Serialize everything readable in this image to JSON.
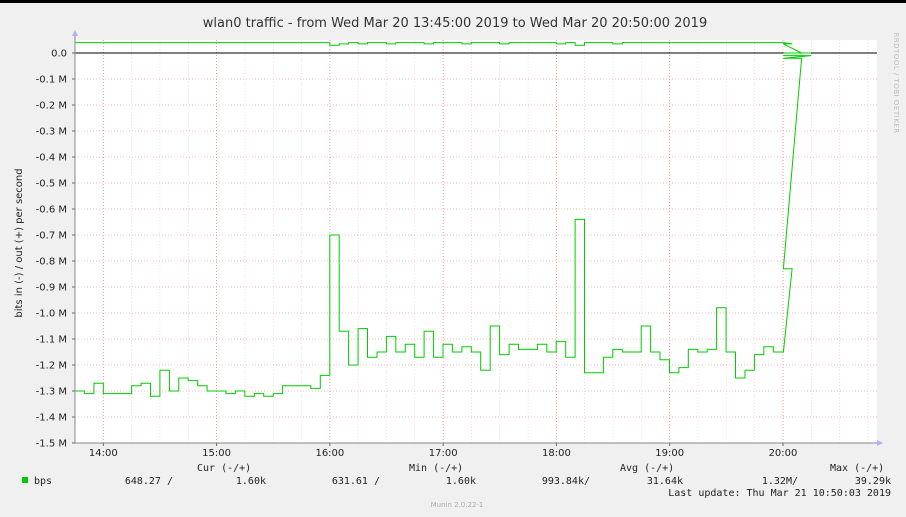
{
  "colors": {
    "background": "#f0f0f0",
    "plot_bg": "#ffffff",
    "series": "#00cc00",
    "grid": "#f08080",
    "zero_line": "#000000",
    "arrow": "#b0b0ff"
  },
  "side_label": "RRDTOOL / TOBI OETIKER",
  "legend": {
    "headers": [
      "Cur (-/+)",
      "Min (-/+)",
      "Avg (-/+)",
      "Max (-/+)"
    ],
    "series_name": "bps",
    "cur": [
      "648.27 /",
      "1.60k"
    ],
    "min": [
      "631.61 /",
      "1.60k"
    ],
    "avg": [
      "993.84k/",
      "31.64k"
    ],
    "max": [
      "1.32M/",
      "39.29k"
    ],
    "last_update": "Last update:  Thu Mar 21 10:50:03 2019"
  },
  "footer": "Munin 2.0.22-1",
  "chart_data": {
    "type": "line",
    "title": "wlan0 traffic - from Wed Mar 20 13:45:00 2019 to Wed Mar 20 20:50:00 2019",
    "xlabel": "",
    "ylabel": "bits in (-) / out (+) per second",
    "x_unit": "hours since 13:45",
    "xlim": [
      0,
      7.08
    ],
    "ylim": [
      -1.5,
      0.05
    ],
    "x_ticks": [
      {
        "x": 0.25,
        "label": "14:00"
      },
      {
        "x": 1.25,
        "label": "15:00"
      },
      {
        "x": 2.25,
        "label": "16:00"
      },
      {
        "x": 3.25,
        "label": "17:00"
      },
      {
        "x": 4.25,
        "label": "18:00"
      },
      {
        "x": 5.25,
        "label": "19:00"
      },
      {
        "x": 6.25,
        "label": "20:00"
      }
    ],
    "y_ticks": [
      {
        "y": 0.0,
        "label": "0.0"
      },
      {
        "y": -0.1,
        "label": "-0.1 M"
      },
      {
        "y": -0.2,
        "label": "-0.2 M"
      },
      {
        "y": -0.3,
        "label": "-0.3 M"
      },
      {
        "y": -0.4,
        "label": "-0.4 M"
      },
      {
        "y": -0.5,
        "label": "-0.5 M"
      },
      {
        "y": -0.6,
        "label": "-0.6 M"
      },
      {
        "y": -0.7,
        "label": "-0.7 M"
      },
      {
        "y": -0.8,
        "label": "-0.8 M"
      },
      {
        "y": -0.9,
        "label": "-0.9 M"
      },
      {
        "y": -1.0,
        "label": "-1.0 M"
      },
      {
        "y": -1.1,
        "label": "-1.1 M"
      },
      {
        "y": -1.2,
        "label": "-1.2 M"
      },
      {
        "y": -1.3,
        "label": "-1.3 M"
      },
      {
        "y": -1.4,
        "label": "-1.4 M"
      },
      {
        "y": -1.5,
        "label": "-1.5 M"
      }
    ],
    "grid": true,
    "legend_position": "bottom-left",
    "series": [
      {
        "name": "bps (in, negative)",
        "color": "#00cc00",
        "step_width": 0.0833,
        "values": [
          -1.3,
          -1.31,
          -1.27,
          -1.31,
          -1.31,
          -1.31,
          -1.28,
          -1.27,
          -1.32,
          -1.22,
          -1.3,
          -1.25,
          -1.26,
          -1.28,
          -1.3,
          -1.3,
          -1.31,
          -1.3,
          -1.32,
          -1.31,
          -1.32,
          -1.31,
          -1.28,
          -1.28,
          -1.28,
          -1.29,
          -1.24,
          -0.7,
          -1.07,
          -1.2,
          -1.06,
          -1.17,
          -1.15,
          -1.09,
          -1.15,
          -1.12,
          -1.17,
          -1.07,
          -1.17,
          -1.12,
          -1.15,
          -1.13,
          -1.15,
          -1.22,
          -1.05,
          -1.16,
          -1.12,
          -1.14,
          -1.14,
          -1.12,
          -1.15,
          -1.11,
          -1.17,
          -0.64,
          -1.23,
          -1.23,
          -1.17,
          -1.14,
          -1.15,
          -1.15,
          -1.05,
          -1.15,
          -1.18,
          -1.23,
          -1.21,
          -1.14,
          -1.15,
          -1.14,
          -0.98,
          -1.15,
          -1.25,
          -1.22,
          -1.16,
          -1.13,
          -1.15,
          -1.15,
          -0.83,
          -0.02,
          -0.01
        ],
        "end_x": 6.17
      },
      {
        "name": "bps (out, positive)",
        "color": "#00cc00",
        "step_width": 0.0833,
        "values": [
          0.04,
          0.04,
          0.04,
          0.04,
          0.04,
          0.04,
          0.04,
          0.04,
          0.04,
          0.04,
          0.04,
          0.04,
          0.04,
          0.04,
          0.04,
          0.04,
          0.04,
          0.04,
          0.04,
          0.04,
          0.04,
          0.04,
          0.04,
          0.04,
          0.04,
          0.04,
          0.04,
          0.03,
          0.035,
          0.04,
          0.035,
          0.04,
          0.04,
          0.035,
          0.04,
          0.04,
          0.04,
          0.035,
          0.04,
          0.04,
          0.04,
          0.035,
          0.04,
          0.04,
          0.04,
          0.035,
          0.04,
          0.04,
          0.04,
          0.04,
          0.04,
          0.035,
          0.04,
          0.03,
          0.04,
          0.04,
          0.04,
          0.035,
          0.04,
          0.04,
          0.04,
          0.04,
          0.04,
          0.04,
          0.04,
          0.04,
          0.04,
          0.04,
          0.04,
          0.04,
          0.04,
          0.04,
          0.04,
          0.04,
          0.04,
          0.04,
          0.035,
          0.0,
          0.0
        ],
        "end_x": 6.17
      }
    ]
  }
}
